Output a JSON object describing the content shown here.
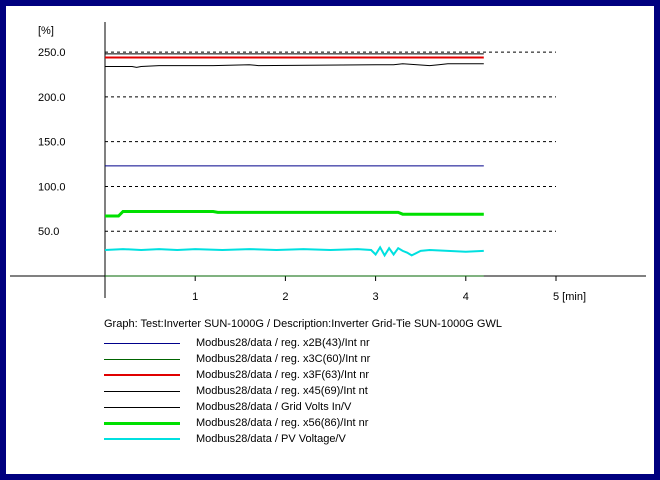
{
  "chart_data": {
    "type": "line",
    "ylabel": "[%]",
    "xlabel": "",
    "x_unit_label": "5 [min]",
    "xlim": [
      0,
      6
    ],
    "ylim": [
      0,
      287
    ],
    "x_ticks": [
      {
        "v": 1,
        "label": "1"
      },
      {
        "v": 2,
        "label": "2"
      },
      {
        "v": 3,
        "label": "3"
      },
      {
        "v": 4,
        "label": "4"
      },
      {
        "v": 5,
        "label": "5 [min]"
      }
    ],
    "y_ticks": [
      {
        "v": 50,
        "label": "50.0"
      },
      {
        "v": 100,
        "label": "100.0"
      },
      {
        "v": 150,
        "label": "150.0"
      },
      {
        "v": 200,
        "label": "200.0"
      },
      {
        "v": 250,
        "label": "250.0"
      }
    ],
    "grid": "horizontal-dashed",
    "description": "Graph: Test:Inverter SUN-1000G / Description:Inverter Grid-Tie SUN-1000G GWL",
    "series": [
      {
        "name": "Modbus28/data / reg. x2B(43)/Int nr",
        "color": "#00008b",
        "width": 1,
        "x": [
          0,
          4.2
        ],
        "y": [
          123,
          123
        ]
      },
      {
        "name": "Modbus28/data / reg. x3C(60)/Int nr",
        "color": "#006400",
        "width": 1,
        "x": [
          0,
          4.2
        ],
        "y": [
          0,
          0
        ]
      },
      {
        "name": "Modbus28/data / reg. x3F(63)/Int nr",
        "color": "#e00000",
        "width": 2,
        "x": [
          0,
          4.2
        ],
        "y": [
          244,
          244
        ]
      },
      {
        "name": "Modbus28/data / reg. x45(69)/Int nt",
        "color": "#000000",
        "width": 1,
        "x": [
          0,
          4.2
        ],
        "y": [
          248,
          248
        ]
      },
      {
        "name": "Modbus28/data / Grid Volts In/V",
        "color": "#000000",
        "width": 1,
        "x": [
          0,
          0.3,
          0.35,
          0.4,
          0.6,
          1.2,
          1.6,
          1.7,
          3.0,
          3.2,
          3.3,
          3.6,
          3.7,
          3.8,
          4.2
        ],
        "y": [
          234,
          234,
          233,
          234,
          235,
          235,
          236,
          235,
          236,
          236,
          237,
          235,
          236,
          237,
          237
        ]
      },
      {
        "name": "Modbus28/data / reg. x56(86)/Int nr",
        "color": "#00e000",
        "width": 3,
        "x": [
          0,
          0.15,
          0.2,
          1.2,
          1.25,
          3.25,
          3.3,
          4.2
        ],
        "y": [
          67,
          67,
          72,
          72,
          71,
          71,
          69,
          69
        ]
      },
      {
        "name": "Modbus28/data / PV Voltage/V",
        "color": "#00e0e0",
        "width": 2,
        "x": [
          0,
          0.2,
          0.4,
          0.6,
          0.8,
          1.0,
          1.3,
          1.6,
          1.9,
          2.2,
          2.5,
          2.8,
          2.95,
          3.0,
          3.05,
          3.1,
          3.15,
          3.2,
          3.25,
          3.3,
          3.35,
          3.4,
          3.5,
          3.6,
          3.8,
          4.0,
          4.2
        ],
        "y": [
          29,
          30,
          29,
          30,
          29,
          30,
          29,
          30,
          29,
          30,
          29,
          30,
          29,
          24,
          32,
          23,
          31,
          24,
          31,
          28,
          26,
          23,
          28,
          29,
          28,
          27,
          28
        ]
      }
    ]
  }
}
